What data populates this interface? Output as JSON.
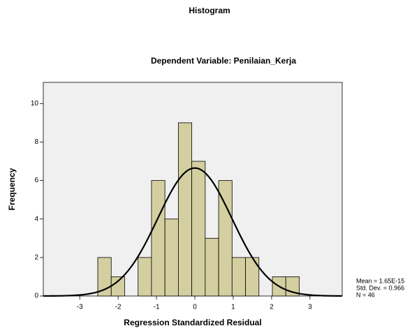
{
  "chart_data": {
    "type": "histogram",
    "title": "Histogram",
    "subtitle": "Dependent Variable: Penilaian_Kerja",
    "xlabel": "Regression Standardized Residual",
    "ylabel": "Frequency",
    "bins": [
      -2.53,
      -2.18,
      -1.83,
      -1.48,
      -1.13,
      -0.78,
      -0.43,
      -0.08,
      0.27,
      0.62,
      0.97,
      1.32,
      1.67,
      2.02,
      2.37,
      2.72
    ],
    "values": [
      2,
      1,
      0,
      2,
      6,
      4,
      9,
      7,
      3,
      6,
      2,
      2,
      0,
      1,
      1
    ],
    "color": "#d4cfa0",
    "xlim": [
      -3.95,
      3.84
    ],
    "xticks": [
      -3,
      -2,
      -1,
      0,
      1,
      2,
      3
    ],
    "ylim": [
      0,
      11.1
    ],
    "yticks": [
      0,
      2,
      4,
      6,
      8,
      10
    ],
    "stats": [
      {
        "value": 1.65e-15,
        "label": "Mean = 1.65E-15"
      },
      {
        "value": 0.966,
        "label": "Std. Dev. = 0.966"
      },
      {
        "value": 46,
        "label": "N = 46"
      }
    ]
  }
}
